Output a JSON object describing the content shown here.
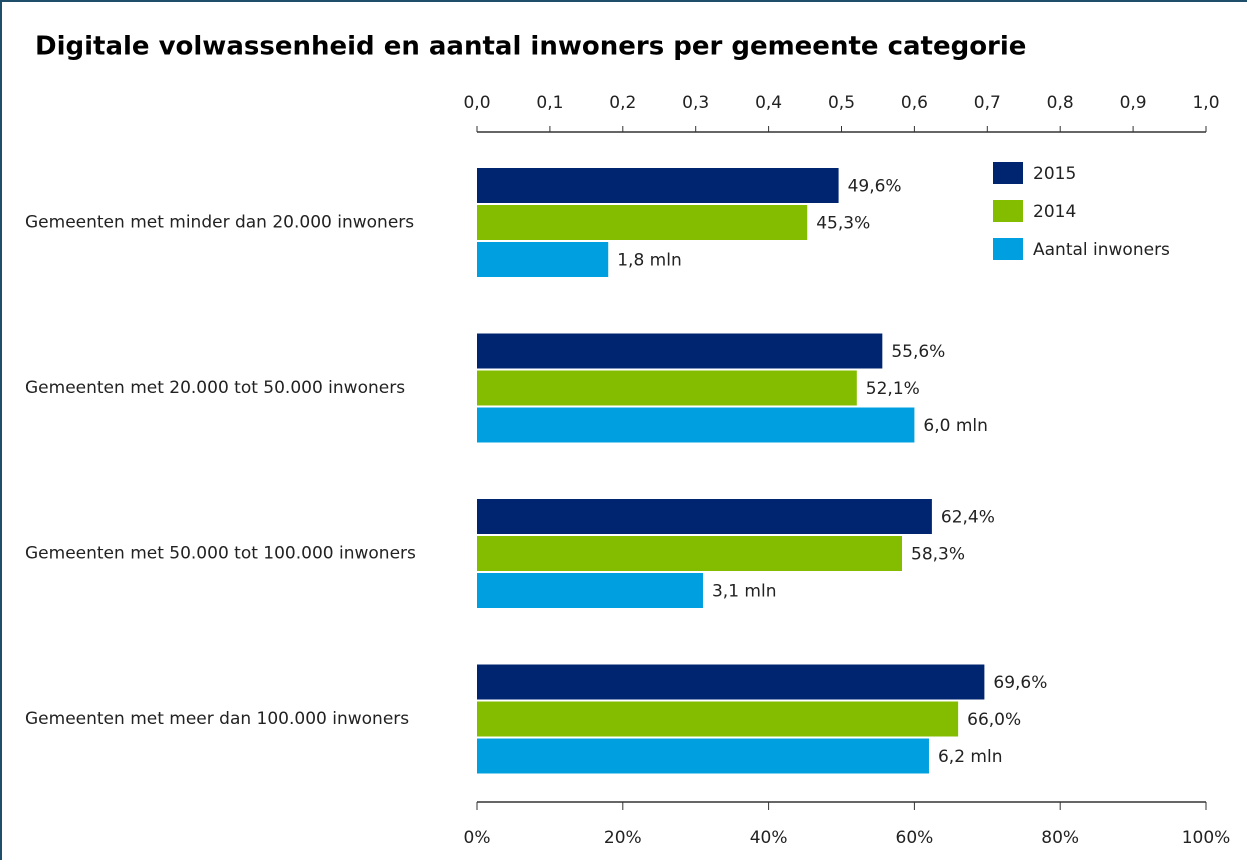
{
  "chart_data": {
    "type": "bar",
    "orientation": "horizontal",
    "title": "Digitale volwassenheid en aantal inwoners per gemeente categorie",
    "categories": [
      "Gemeenten met minder dan 20.000 inwoners",
      "Gemeenten met 20.000 tot 50.000 inwoners",
      "Gemeenten met 50.000 tot 100.000 inwoners",
      "Gemeenten met meer dan 100.000 inwoners"
    ],
    "series": [
      {
        "name": "2015",
        "color": "#002570",
        "values": [
          49.6,
          55.6,
          62.4,
          69.6
        ],
        "value_labels": [
          "49,6%",
          "55,6%",
          "62,4%",
          "69,6%"
        ]
      },
      {
        "name": "2014",
        "color": "#84bd00",
        "values": [
          45.3,
          52.1,
          58.3,
          66.0
        ],
        "value_labels": [
          "45,3%",
          "52,1%",
          "58,3%",
          "66,0%"
        ]
      },
      {
        "name": "Aantal inwoners",
        "color": "#00a0e0",
        "axis": "x2",
        "values": [
          0.18,
          0.6,
          0.31,
          0.62
        ],
        "value_labels": [
          "1,8 mln",
          "6,0 mln",
          "3,1 mln",
          "6,2 mln"
        ]
      }
    ],
    "xlim": [
      0,
      100
    ],
    "xticks": [
      {
        "value": 0,
        "label": "0%"
      },
      {
        "value": 20,
        "label": "20%"
      },
      {
        "value": 40,
        "label": "40%"
      },
      {
        "value": 60,
        "label": "60%"
      },
      {
        "value": 80,
        "label": "80%"
      },
      {
        "value": 100,
        "label": "100%"
      }
    ],
    "x2lim": [
      0,
      1
    ],
    "x2ticks": [
      {
        "value": 0,
        "label": "0,0"
      },
      {
        "value": 0.1,
        "label": "0,1"
      },
      {
        "value": 0.2,
        "label": "0,2"
      },
      {
        "value": 0.3,
        "label": "0,3"
      },
      {
        "value": 0.4,
        "label": "0,4"
      },
      {
        "value": 0.5,
        "label": "0,5"
      },
      {
        "value": 0.6,
        "label": "0,6"
      },
      {
        "value": 0.7,
        "label": "0,7"
      },
      {
        "value": 0.8,
        "label": "0,8"
      },
      {
        "value": 0.9,
        "label": "0,9"
      },
      {
        "value": 1,
        "label": "1,0"
      }
    ],
    "legend": "top-right",
    "grid": false
  }
}
